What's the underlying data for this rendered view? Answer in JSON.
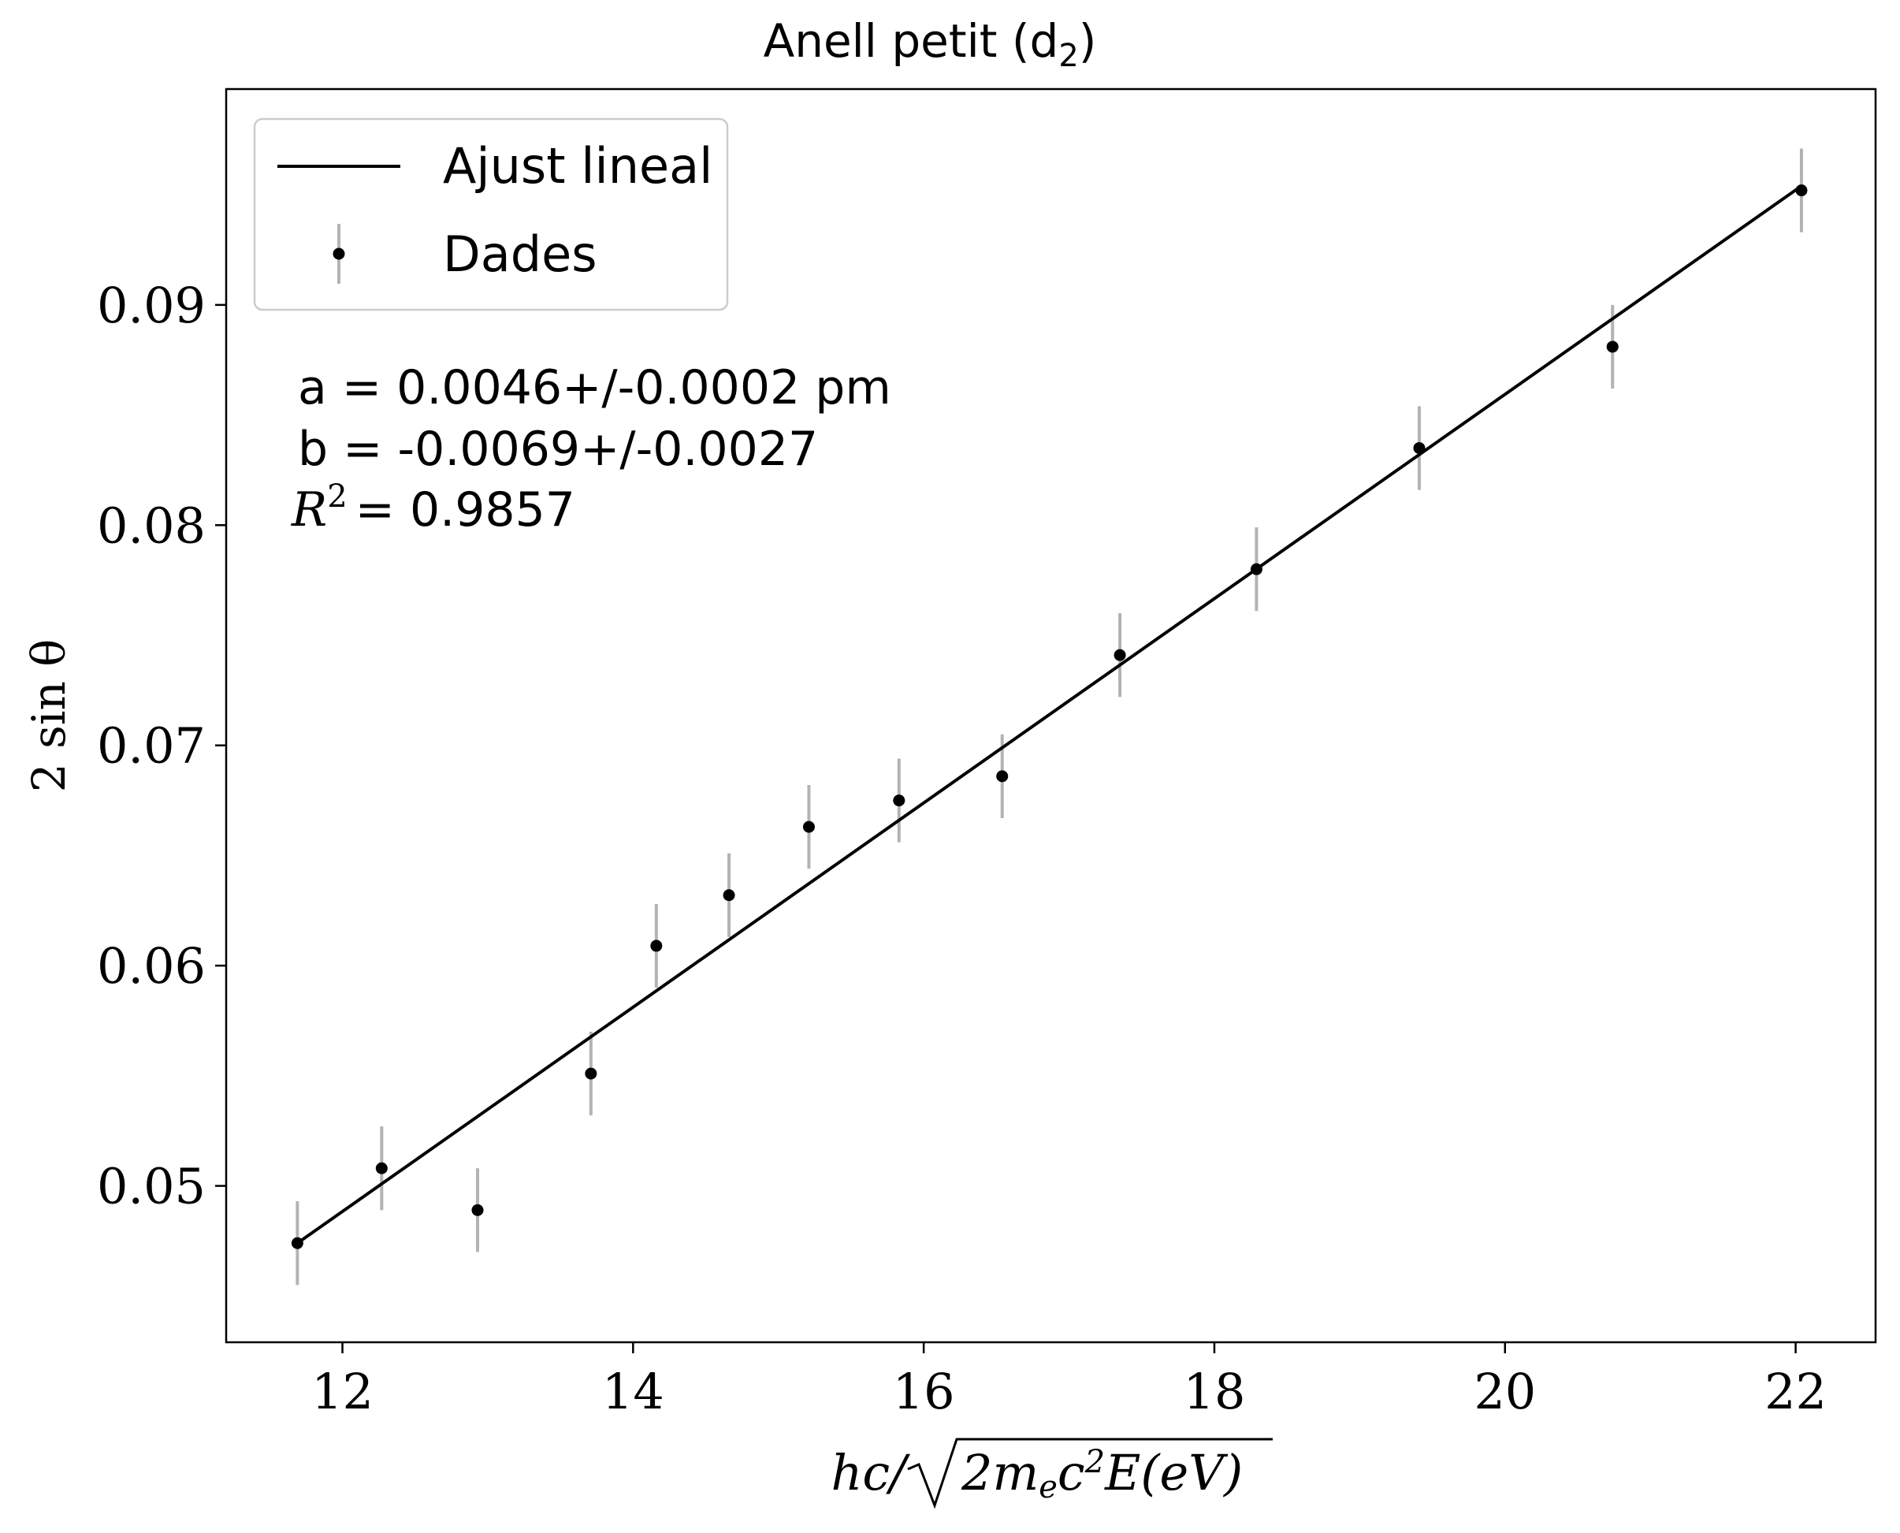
{
  "chart_data": {
    "type": "scatter",
    "title_main": "Anell petit (d",
    "title_sub": "2",
    "title_close": ")",
    "xlabel": {
      "hc": "hc/",
      "radicand": "2m",
      "sub_e": "e",
      "c": "c",
      "sup_2": "2",
      "tail": "E(eV)"
    },
    "ylabel": "2 sin θ",
    "xlim": [
      11.2,
      22.55
    ],
    "ylim": [
      0.0429,
      0.0998
    ],
    "xticks": [
      12,
      14,
      16,
      18,
      20,
      22
    ],
    "xtick_labels": [
      "12",
      "14",
      "16",
      "18",
      "20",
      "22"
    ],
    "yticks": [
      0.05,
      0.06,
      0.07,
      0.08,
      0.09
    ],
    "ytick_labels": [
      "0.05",
      "0.06",
      "0.07",
      "0.08",
      "0.09"
    ],
    "series": [
      {
        "name": "Dades",
        "kind": "errorbar",
        "x": [
          11.69,
          12.27,
          12.93,
          13.71,
          14.16,
          14.66,
          15.21,
          15.83,
          16.54,
          17.35,
          18.29,
          19.41,
          20.74,
          22.04
        ],
        "y": [
          0.0474,
          0.0508,
          0.0489,
          0.0551,
          0.0609,
          0.0632,
          0.0663,
          0.0675,
          0.0686,
          0.0741,
          0.078,
          0.0835,
          0.0881,
          0.0952
        ],
        "yerr": [
          0.0019,
          0.0019,
          0.0019,
          0.0019,
          0.0019,
          0.0019,
          0.0019,
          0.0019,
          0.0019,
          0.0019,
          0.0019,
          0.0019,
          0.0019,
          0.0019
        ],
        "marker_color": "#000000",
        "errorbar_color": "#b3b3b3"
      },
      {
        "name": "Ajust lineal",
        "kind": "line",
        "x": [
          11.69,
          22.04
        ],
        "y": [
          0.0474,
          0.0954
        ],
        "color": "#000000"
      }
    ],
    "legend": {
      "location": "top-left",
      "entries": [
        "Ajust lineal",
        "Dades"
      ]
    },
    "annotations": {
      "line_a": "a = 0.0046+/-0.0002 pm",
      "line_b": "b = -0.0069+/-0.0027",
      "r2_label": "R",
      "r2_sup": "2",
      "r2_value": "= 0.9857"
    },
    "grid": false
  }
}
